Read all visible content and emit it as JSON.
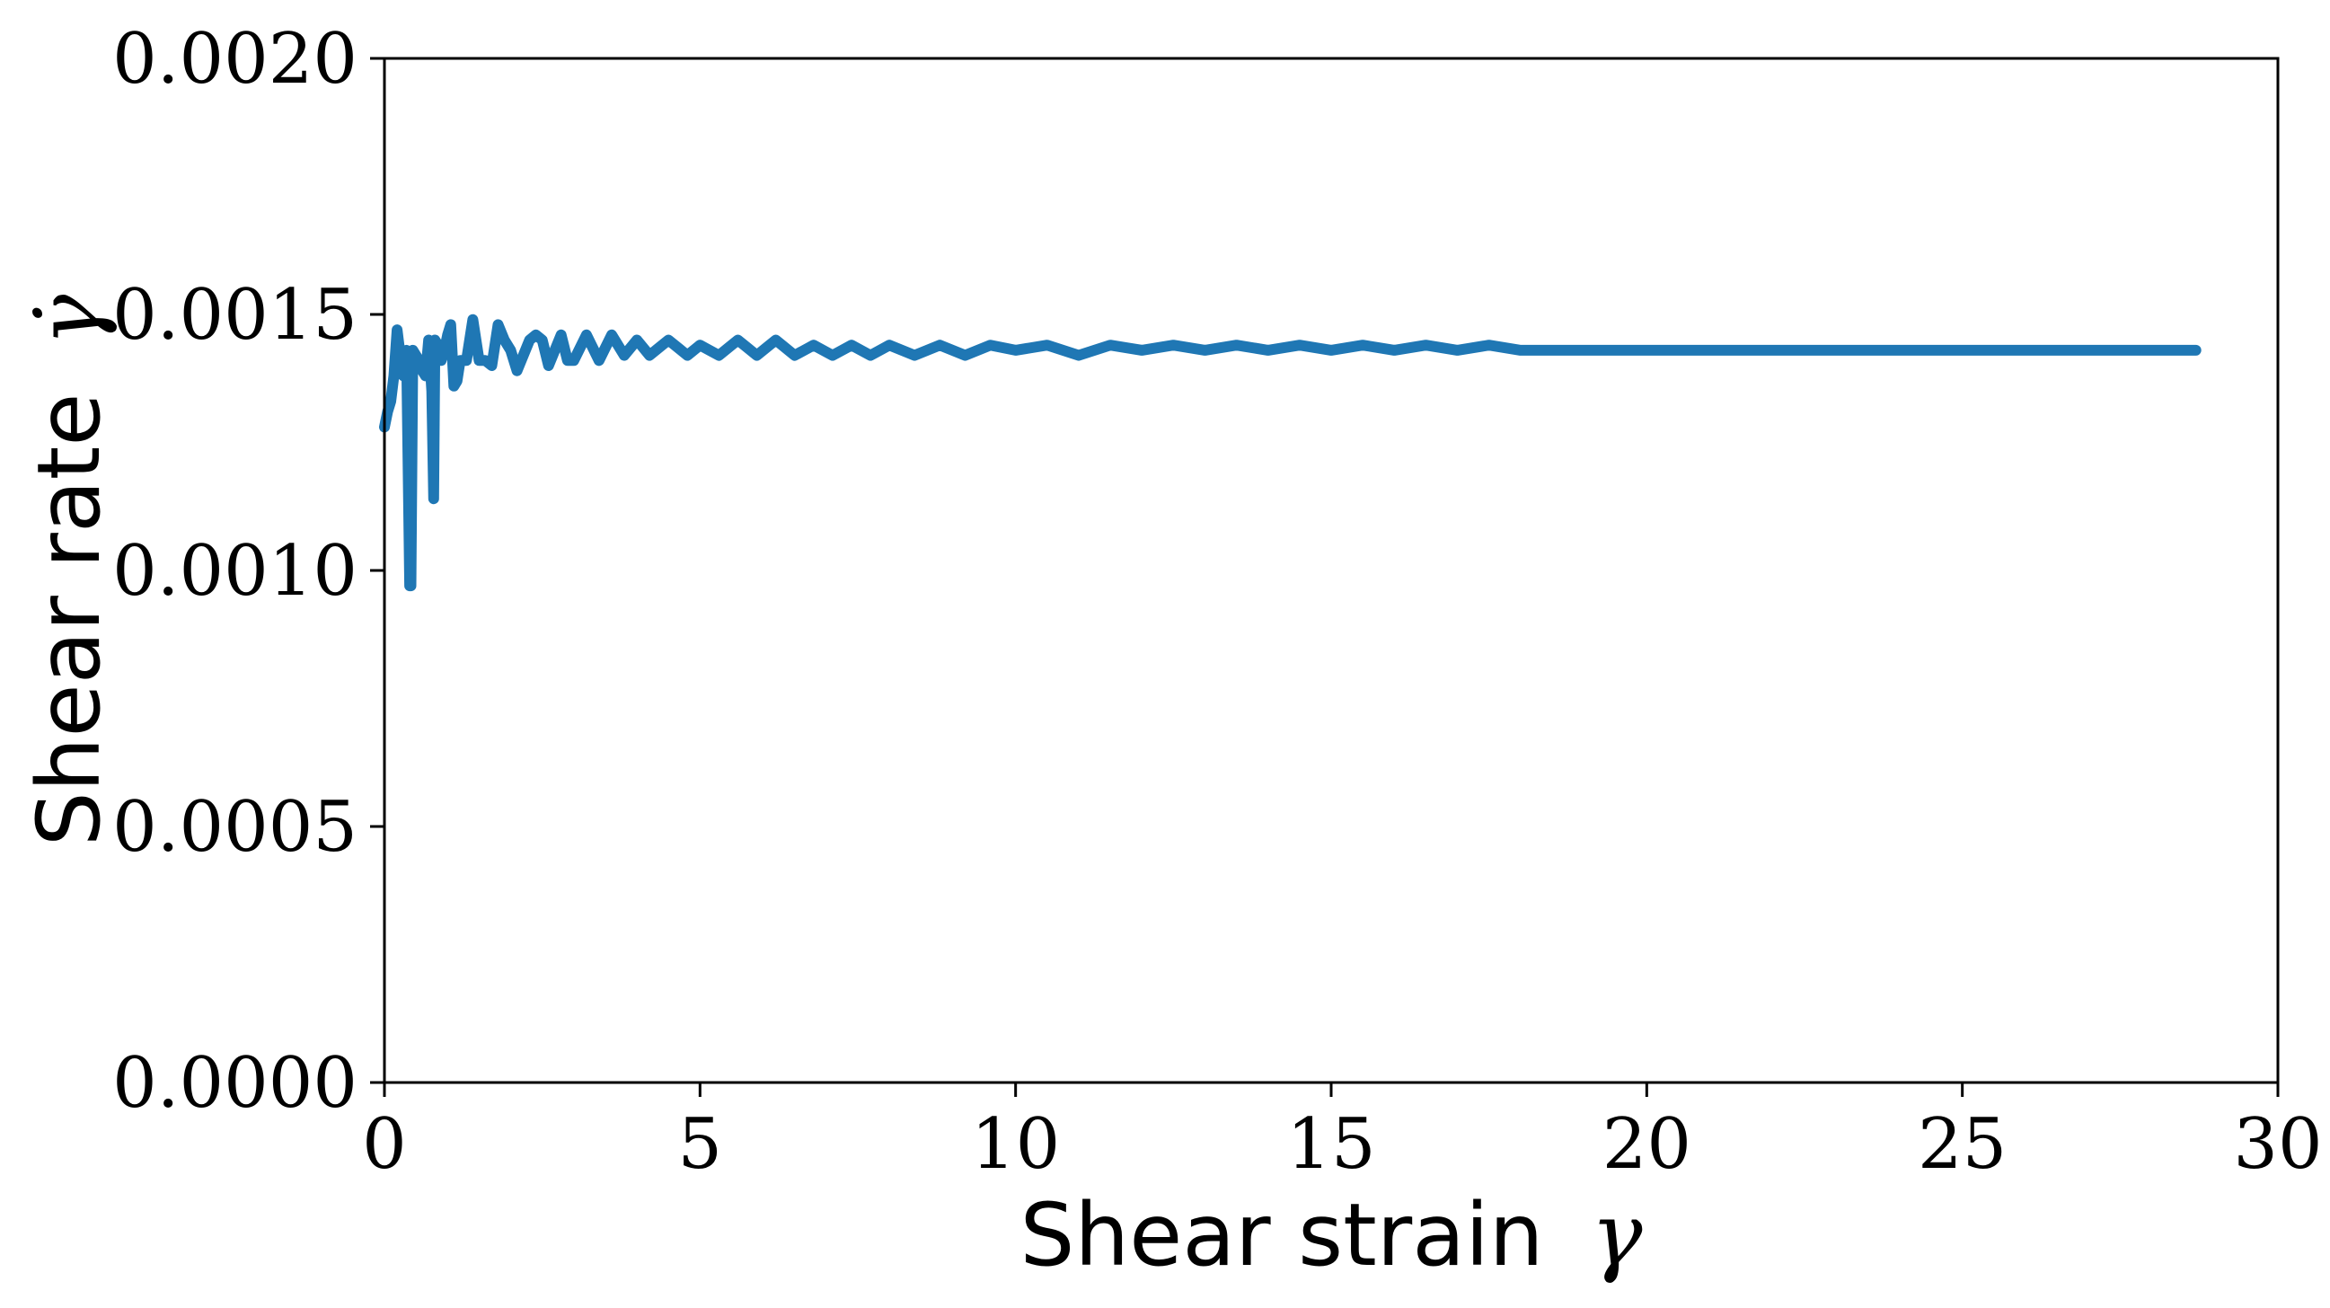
{
  "chart_data": {
    "type": "line",
    "title": "",
    "xlabel": "Shear strain",
    "xlabel_symbol": "γ",
    "ylabel": "Shear rate",
    "ylabel_symbol": "γ̇",
    "xlim": [
      0,
      30
    ],
    "ylim": [
      0,
      0.002
    ],
    "xticks": [
      0,
      5,
      10,
      15,
      20,
      25,
      30
    ],
    "xtick_labels": [
      "0",
      "5",
      "10",
      "15",
      "20",
      "25",
      "30"
    ],
    "yticks": [
      0,
      0.0005,
      0.001,
      0.0015,
      0.002
    ],
    "ytick_labels": [
      "0.0000",
      "0.0005",
      "0.0010",
      "0.0015",
      "0.0020"
    ],
    "grid": false,
    "legend": "none",
    "line_color": "#1f77b4",
    "series": [
      {
        "x": [
          0.0,
          0.05,
          0.1,
          0.15,
          0.2,
          0.25,
          0.3,
          0.35,
          0.4,
          0.42,
          0.45,
          0.5,
          0.55,
          0.6,
          0.65,
          0.7,
          0.75,
          0.78,
          0.8,
          0.85,
          0.9,
          0.95,
          1.0,
          1.05,
          1.1,
          1.15,
          1.2,
          1.3,
          1.4,
          1.5,
          1.6,
          1.7,
          1.8,
          1.9,
          2.0,
          2.1,
          2.2,
          2.3,
          2.4,
          2.5,
          2.6,
          2.7,
          2.8,
          2.9,
          3.0,
          3.2,
          3.4,
          3.6,
          3.8,
          4.0,
          4.2,
          4.5,
          4.8,
          5.0,
          5.3,
          5.6,
          5.9,
          6.2,
          6.5,
          6.8,
          7.1,
          7.4,
          7.7,
          8.0,
          8.4,
          8.8,
          9.2,
          9.6,
          10.0,
          10.5,
          11.0,
          11.5,
          12.0,
          12.5,
          13.0,
          13.5,
          14.0,
          14.5,
          15.0,
          15.5,
          16.0,
          16.5,
          17.0,
          17.5,
          18.0,
          18.5,
          19.0,
          19.5,
          20.0,
          20.5,
          21.0,
          21.5,
          22.0,
          22.5,
          23.0,
          23.5,
          24.0,
          24.5,
          25.0,
          25.5,
          26.0,
          26.5,
          27.0,
          27.5,
          28.0,
          28.5,
          28.7
        ],
        "y": [
          0.00128,
          0.00131,
          0.00133,
          0.00138,
          0.00147,
          0.00142,
          0.00138,
          0.00143,
          0.00097,
          0.00097,
          0.00143,
          0.00142,
          0.00141,
          0.00139,
          0.00138,
          0.00145,
          0.00135,
          0.00114,
          0.00145,
          0.00144,
          0.00141,
          0.00143,
          0.00146,
          0.00148,
          0.00136,
          0.00137,
          0.00141,
          0.00141,
          0.00149,
          0.00141,
          0.00141,
          0.0014,
          0.00148,
          0.00145,
          0.00143,
          0.00139,
          0.00142,
          0.00145,
          0.00146,
          0.00145,
          0.0014,
          0.00143,
          0.00146,
          0.00141,
          0.00141,
          0.00146,
          0.00141,
          0.00146,
          0.00142,
          0.00145,
          0.00142,
          0.00145,
          0.00142,
          0.00144,
          0.00142,
          0.00145,
          0.00142,
          0.00145,
          0.00142,
          0.00144,
          0.00142,
          0.00144,
          0.00142,
          0.00144,
          0.00142,
          0.00144,
          0.00142,
          0.00144,
          0.00143,
          0.00144,
          0.00142,
          0.00144,
          0.00143,
          0.00144,
          0.00143,
          0.00144,
          0.00143,
          0.00144,
          0.00143,
          0.00144,
          0.00143,
          0.00144,
          0.00143,
          0.00144,
          0.00143,
          0.00143,
          0.00143,
          0.00143,
          0.00143,
          0.00143,
          0.00143,
          0.00143,
          0.00143,
          0.00143,
          0.00143,
          0.00143,
          0.00143,
          0.00143,
          0.00143,
          0.00143,
          0.00143,
          0.00143,
          0.00143,
          0.00143,
          0.00143,
          0.00143,
          0.00143
        ]
      }
    ]
  }
}
